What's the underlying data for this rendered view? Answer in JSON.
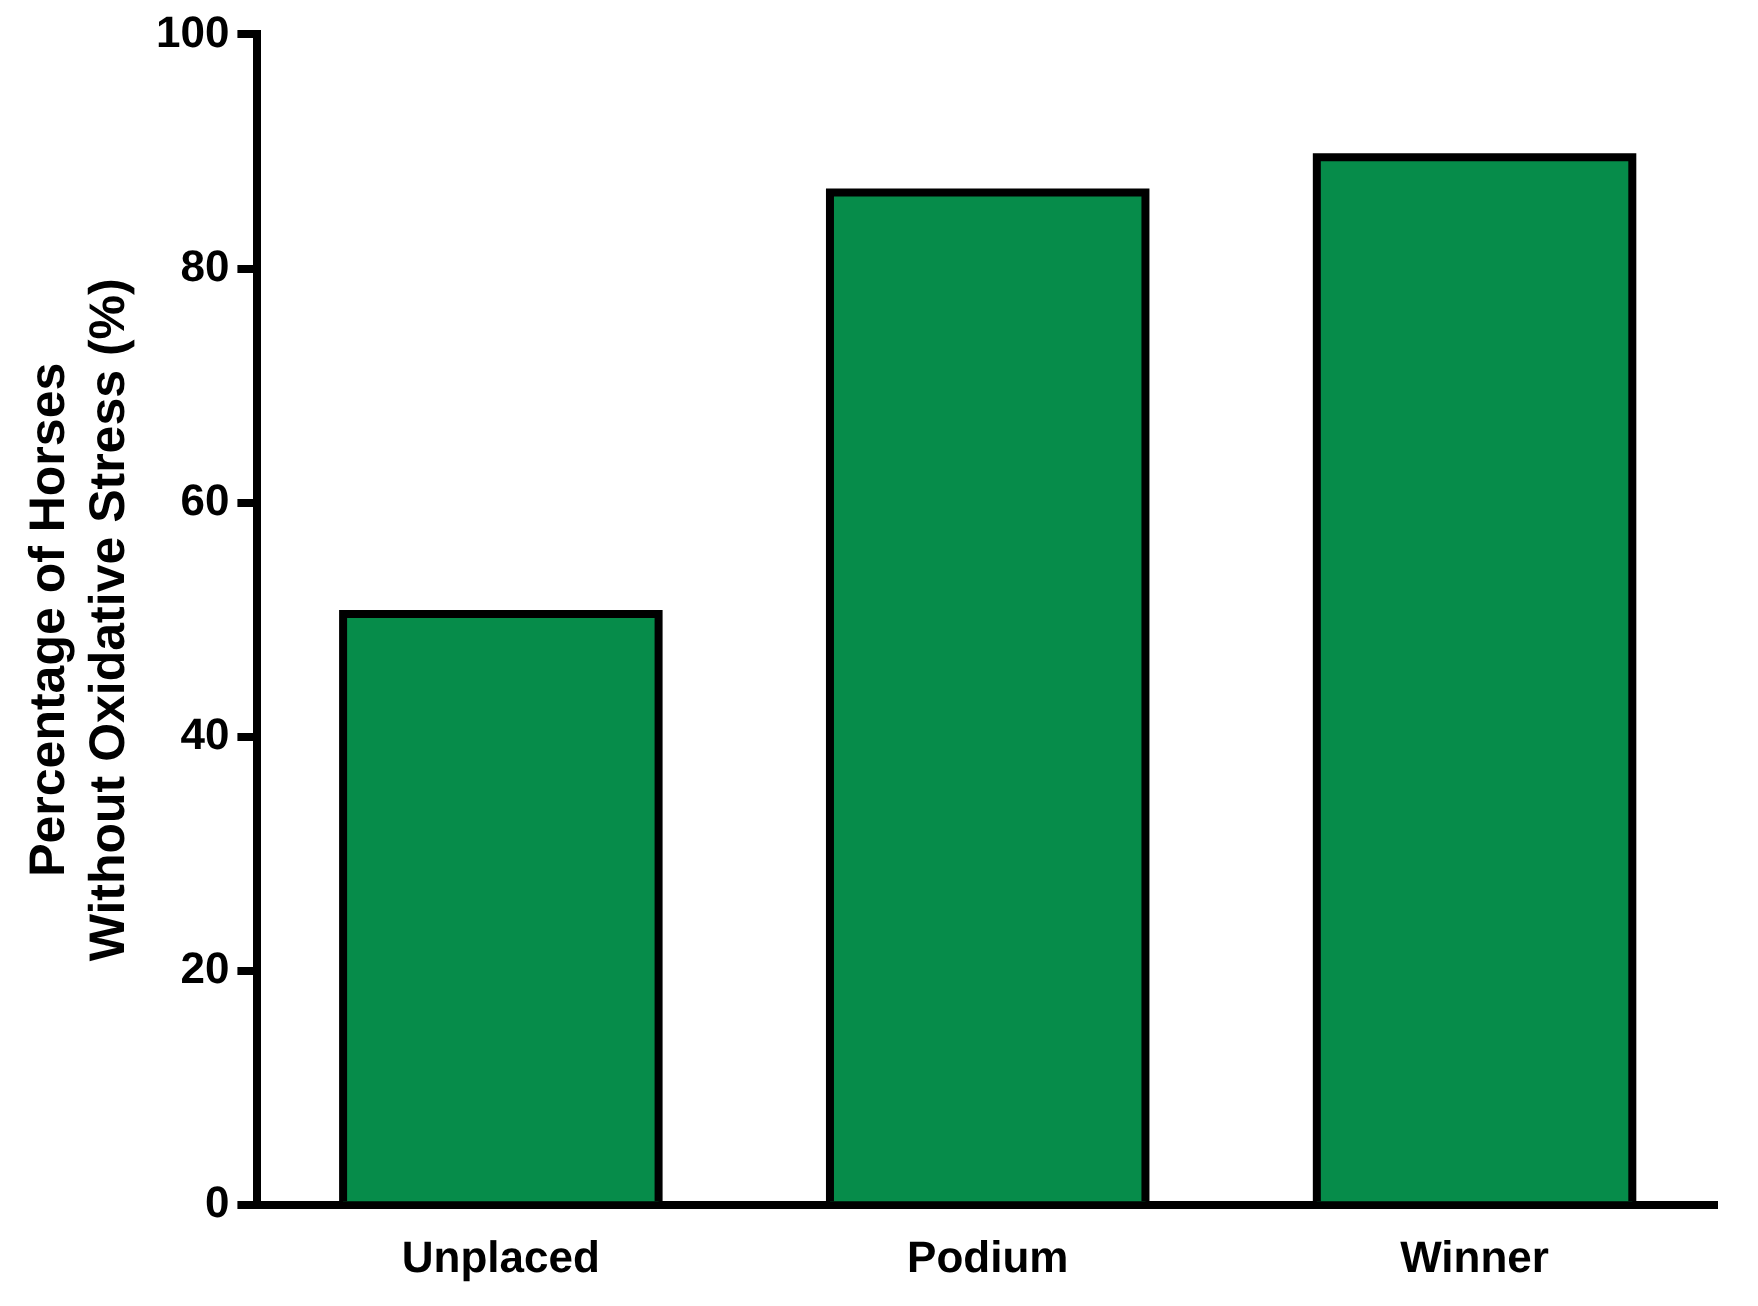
{
  "chart_data": {
    "type": "bar",
    "ylabel": "Percentage of Horses\nWithout Oxidative Stress (%)",
    "categories": [
      "Unplaced",
      "Podium",
      "Winner"
    ],
    "values": [
      50.5,
      86.5,
      89.5
    ],
    "color": "#068c4a",
    "ylim": [
      0,
      100
    ],
    "yticks": [
      0,
      20,
      40,
      60,
      80,
      100
    ],
    "grid": false,
    "legend": false
  }
}
